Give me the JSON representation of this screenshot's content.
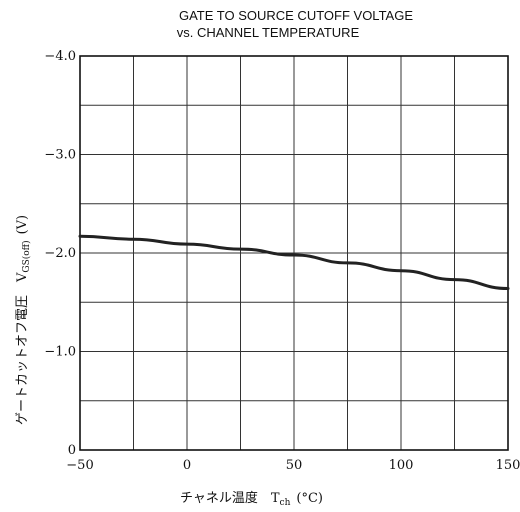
{
  "chart_data": {
    "type": "line",
    "title_lines": [
      "GATE TO SOURCE CUTOFF VOLTAGE",
      "vs. CHANNEL TEMPERATURE"
    ],
    "xlabel": "チャネル温度　T",
    "xlabel_sub": "ch",
    "xlabel_unit": "(°C)",
    "ylabel": "ゲートカットオフ電圧　V",
    "ylabel_sub": "GS(off)",
    "ylabel_unit": "(V)",
    "xlim": [
      -50,
      150
    ],
    "ylim": [
      0,
      -4.0
    ],
    "x_ticks": [
      {
        "value": -50,
        "label": "−50"
      },
      {
        "value": 0,
        "label": "0"
      },
      {
        "value": 50,
        "label": "50"
      },
      {
        "value": 100,
        "label": "100"
      },
      {
        "value": 150,
        "label": "150"
      }
    ],
    "y_ticks": [
      {
        "value": -4.0,
        "label": "−4.0"
      },
      {
        "value": -3.0,
        "label": "−3.0"
      },
      {
        "value": -2.0,
        "label": "−2.0"
      },
      {
        "value": -1.0,
        "label": "−1.0"
      },
      {
        "value": 0,
        "label": "0"
      }
    ],
    "grid": true,
    "series": [
      {
        "x": [
          -50,
          -25,
          0,
          25,
          50,
          75,
          100,
          125,
          150
        ],
        "y": [
          -2.17,
          -2.14,
          -2.09,
          -2.04,
          -1.98,
          -1.9,
          -1.82,
          -1.73,
          -1.64
        ]
      }
    ]
  }
}
